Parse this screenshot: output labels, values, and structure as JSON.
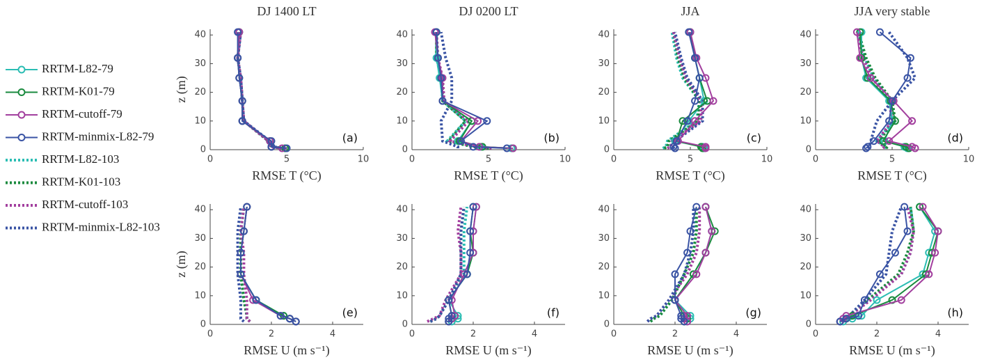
{
  "legend": [
    {
      "name": "RRTM-L82-79",
      "color": "#2bbdb3",
      "style": "solid"
    },
    {
      "name": "RRTM-K01-79",
      "color": "#1a8a3e",
      "style": "solid"
    },
    {
      "name": "RRTM-cutoff-79",
      "color": "#a23f9e",
      "style": "solid"
    },
    {
      "name": "RRTM-minmix-L82-79",
      "color": "#3953a4",
      "style": "solid"
    },
    {
      "name": "RRTM-L82-103",
      "color": "#2bbdb3",
      "style": "dotted"
    },
    {
      "name": "RRTM-K01-103",
      "color": "#1a8a3e",
      "style": "dotted"
    },
    {
      "name": "RRTM-cutoff-103",
      "color": "#a23f9e",
      "style": "dotted"
    },
    {
      "name": "RRTM-minmix-L82-103",
      "color": "#3953a4",
      "style": "dotted"
    }
  ],
  "chart_data": [
    {
      "type": "line",
      "title": "DJ 1400 LT",
      "xlabel": "RMSE T (°C)",
      "ylabel": "z (m)",
      "panel_label": "(a)",
      "y": [
        0.5,
        1,
        3,
        10,
        17,
        25,
        32,
        41
      ],
      "xlim": [
        0,
        10
      ],
      "xticks": [
        0,
        5,
        10
      ],
      "ylim": [
        0,
        42
      ],
      "yticks": [
        0,
        10,
        20,
        30,
        40
      ],
      "series": [
        {
          "values": [
            4.9,
            4.0,
            3.9,
            2.1,
            2.1,
            1.9,
            1.8,
            1.9
          ]
        },
        {
          "values": [
            4.9,
            4.0,
            3.9,
            2.1,
            2.1,
            1.9,
            1.8,
            1.9
          ]
        },
        {
          "values": [
            4.7,
            4.0,
            3.9,
            2.1,
            2.1,
            1.9,
            1.8,
            1.9
          ]
        },
        {
          "values": [
            5.0,
            4.0,
            4.0,
            2.1,
            2.1,
            1.9,
            1.8,
            1.8
          ]
        },
        {
          "values": [
            4.8,
            4.0,
            3.8,
            2.2,
            2.1,
            2.0,
            1.8,
            2.0
          ]
        },
        {
          "values": [
            4.8,
            4.0,
            3.8,
            2.2,
            2.1,
            2.0,
            1.8,
            2.0
          ]
        },
        {
          "values": [
            4.7,
            3.9,
            3.8,
            2.2,
            2.1,
            2.0,
            1.8,
            2.0
          ]
        },
        {
          "values": [
            4.9,
            4.1,
            3.9,
            2.2,
            2.1,
            2.0,
            1.8,
            2.0
          ]
        }
      ]
    },
    {
      "type": "line",
      "title": "DJ 0200 LT",
      "xlabel": "RMSE T (°C)",
      "panel_label": "(b)",
      "y": [
        0.5,
        1,
        3,
        10,
        17,
        25,
        32,
        41
      ],
      "xlim": [
        0,
        10
      ],
      "xticks": [
        0,
        5,
        10
      ],
      "ylim": [
        0,
        42
      ],
      "yticks": [
        0,
        10,
        20,
        30,
        40
      ],
      "series": [
        {
          "values": [
            6.5,
            4.5,
            3.0,
            3.9,
            2.0,
            1.8,
            1.6,
            1.6
          ]
        },
        {
          "values": [
            6.6,
            4.6,
            3.1,
            3.9,
            2.0,
            1.9,
            1.7,
            1.6
          ]
        },
        {
          "values": [
            6.6,
            4.4,
            3.2,
            4.3,
            2.0,
            2.0,
            1.7,
            1.5
          ]
        },
        {
          "values": [
            6.2,
            4.0,
            3.2,
            4.9,
            2.0,
            1.9,
            1.7,
            1.6
          ]
        },
        {
          "values": [
            5.0,
            4.0,
            2.3,
            3.5,
            2.0,
            1.9,
            1.6,
            1.6
          ]
        },
        {
          "values": [
            5.0,
            4.0,
            2.4,
            3.5,
            2.0,
            2.0,
            1.6,
            1.6
          ]
        },
        {
          "values": [
            5.2,
            4.2,
            2.5,
            3.7,
            2.1,
            2.0,
            1.7,
            1.6
          ]
        },
        {
          "values": [
            3.0,
            3.0,
            2.0,
            1.9,
            2.6,
            2.6,
            2.2,
            1.9
          ]
        }
      ]
    },
    {
      "type": "line",
      "title": "JJA",
      "xlabel": "RMSE T (°C)",
      "panel_label": "(c)",
      "y": [
        0.5,
        1,
        3,
        10,
        17,
        25,
        32,
        41
      ],
      "xlim": [
        0,
        10
      ],
      "xticks": [
        0,
        5,
        10
      ],
      "ylim": [
        0,
        42
      ],
      "yticks": [
        0,
        10,
        20,
        30,
        40
      ],
      "series": [
        {
          "values": [
            5.9,
            5.8,
            4.0,
            4.9,
            5.9,
            5.6,
            5.3,
            5.0
          ]
        },
        {
          "values": [
            5.8,
            5.7,
            4.1,
            4.5,
            6.1,
            5.6,
            5.3,
            5.0
          ]
        },
        {
          "values": [
            6.0,
            6.0,
            4.2,
            5.3,
            6.5,
            6.0,
            5.4,
            5.0
          ]
        },
        {
          "values": [
            4.0,
            3.9,
            4.1,
            4.8,
            5.3,
            5.6,
            5.3,
            4.9
          ]
        },
        {
          "values": [
            3.2,
            3.4,
            3.5,
            5.4,
            5.6,
            4.5,
            4.1,
            3.8
          ]
        },
        {
          "values": [
            3.3,
            3.5,
            3.6,
            5.5,
            5.6,
            4.6,
            4.2,
            3.9
          ]
        },
        {
          "values": [
            3.5,
            3.7,
            3.8,
            5.7,
            5.7,
            4.7,
            4.3,
            3.9
          ]
        },
        {
          "values": [
            3.8,
            4.0,
            4.0,
            5.8,
            5.8,
            4.8,
            4.4,
            4.0
          ]
        }
      ]
    },
    {
      "type": "line",
      "title": "JJA very stable",
      "xlabel": "RMSE T (°C)",
      "panel_label": "(d)",
      "y": [
        0.5,
        1,
        3,
        10,
        17,
        25,
        32,
        41
      ],
      "xlim": [
        0,
        10
      ],
      "xticks": [
        0,
        5,
        10
      ],
      "ylim": [
        0,
        42
      ],
      "yticks": [
        0,
        10,
        20,
        30,
        40
      ],
      "series": [
        {
          "values": [
            6.0,
            5.8,
            4.5,
            5.0,
            4.8,
            3.3,
            3.0,
            3.0
          ]
        },
        {
          "values": [
            6.1,
            5.9,
            4.4,
            5.2,
            4.9,
            3.4,
            3.0,
            2.9
          ]
        },
        {
          "values": [
            6.5,
            6.3,
            4.8,
            6.3,
            5.1,
            3.6,
            2.9,
            2.7
          ]
        },
        {
          "values": [
            3.3,
            3.4,
            3.8,
            4.8,
            5.0,
            6.0,
            6.2,
            4.2
          ]
        },
        {
          "values": [
            4.5,
            4.6,
            4.0,
            5.1,
            4.9,
            3.8,
            3.2,
            2.8
          ]
        },
        {
          "values": [
            4.6,
            4.7,
            4.1,
            5.2,
            5.0,
            3.9,
            3.3,
            2.8
          ]
        },
        {
          "values": [
            4.4,
            4.5,
            4.0,
            5.0,
            4.8,
            3.7,
            3.1,
            2.7
          ]
        },
        {
          "values": [
            3.4,
            3.5,
            3.6,
            4.0,
            5.0,
            6.5,
            6.0,
            4.8
          ]
        }
      ]
    },
    {
      "type": "line",
      "xlabel": "RMSE U (m s⁻¹)",
      "ylabel": "z (m)",
      "panel_label": "(e)",
      "y": [
        1,
        2,
        3,
        8.5,
        17.5,
        25,
        32.5,
        41
      ],
      "xlim": [
        0,
        5
      ],
      "xticks": [
        0,
        2,
        4
      ],
      "ylim": [
        0,
        42
      ],
      "yticks": [
        0,
        10,
        20,
        30,
        40
      ],
      "series": [
        {
          "values": [
            2.8,
            2.6,
            2.4,
            1.5,
            1.0,
            1.0,
            1.1,
            1.2
          ]
        },
        {
          "values": [
            2.8,
            2.6,
            2.4,
            1.5,
            1.0,
            1.0,
            1.1,
            1.2
          ]
        },
        {
          "values": [
            2.8,
            2.6,
            2.3,
            1.4,
            1.0,
            1.0,
            1.1,
            1.2
          ]
        },
        {
          "values": [
            2.8,
            2.6,
            2.3,
            1.5,
            1.0,
            1.0,
            1.1,
            1.2
          ]
        },
        {
          "values": [
            1.3,
            1.2,
            1.2,
            1.1,
            1.0,
            1.0,
            1.0,
            1.1
          ]
        },
        {
          "values": [
            1.3,
            1.2,
            1.2,
            1.1,
            1.0,
            1.0,
            1.0,
            1.1
          ]
        },
        {
          "values": [
            1.3,
            1.2,
            1.2,
            1.2,
            1.1,
            1.1,
            1.0,
            1.1
          ]
        },
        {
          "values": [
            1.1,
            1.0,
            1.0,
            1.0,
            0.9,
            0.9,
            0.9,
            1.0
          ]
        }
      ]
    },
    {
      "type": "line",
      "xlabel": "RMSE U (m s⁻¹)",
      "panel_label": "(f)",
      "y": [
        1,
        2,
        3,
        8.5,
        17.5,
        25,
        32.5,
        41
      ],
      "xlim": [
        0,
        5
      ],
      "xticks": [
        0,
        2,
        4
      ],
      "ylim": [
        0,
        42
      ],
      "yticks": [
        0,
        10,
        20,
        30,
        40
      ],
      "series": [
        {
          "values": [
            1.3,
            1.5,
            1.5,
            1.2,
            1.8,
            2.0,
            2.0,
            2.1
          ]
        },
        {
          "values": [
            1.2,
            1.3,
            1.3,
            1.2,
            1.8,
            2.0,
            1.9,
            2.0
          ]
        },
        {
          "values": [
            1.2,
            1.3,
            1.4,
            1.3,
            1.7,
            2.0,
            2.0,
            2.1
          ]
        },
        {
          "values": [
            1.2,
            1.2,
            1.3,
            1.2,
            1.8,
            1.9,
            1.9,
            2.0
          ]
        },
        {
          "values": [
            0.6,
            0.8,
            0.9,
            1.2,
            1.7,
            1.7,
            1.7,
            1.8
          ]
        },
        {
          "values": [
            0.6,
            0.8,
            0.9,
            1.2,
            1.6,
            1.6,
            1.6,
            1.7
          ]
        },
        {
          "values": [
            0.5,
            0.7,
            0.9,
            1.1,
            1.6,
            1.6,
            1.5,
            1.6
          ]
        },
        {
          "values": [
            0.6,
            0.8,
            0.9,
            1.2,
            1.6,
            1.6,
            1.6,
            1.7
          ]
        }
      ]
    },
    {
      "type": "line",
      "xlabel": "RMSE U (m s⁻¹)",
      "panel_label": "(g)",
      "y": [
        1,
        2,
        3,
        8.5,
        17.5,
        25,
        32.5,
        41
      ],
      "xlim": [
        0,
        5
      ],
      "xticks": [
        0,
        2,
        4
      ],
      "ylim": [
        0,
        42
      ],
      "yticks": [
        0,
        10,
        20,
        30,
        40
      ],
      "series": [
        {
          "values": [
            2.4,
            2.5,
            2.5,
            2.0,
            2.6,
            3.0,
            3.2,
            3.0
          ]
        },
        {
          "values": [
            2.3,
            2.4,
            2.3,
            2.0,
            2.6,
            3.0,
            3.3,
            3.0
          ]
        },
        {
          "values": [
            2.4,
            2.3,
            2.4,
            2.0,
            2.7,
            3.0,
            3.2,
            3.0
          ]
        },
        {
          "values": [
            2.3,
            2.2,
            2.2,
            2.0,
            2.0,
            2.4,
            2.5,
            2.7
          ]
        },
        {
          "values": [
            1.2,
            1.3,
            1.5,
            1.9,
            2.3,
            2.6,
            2.7,
            2.6
          ]
        },
        {
          "values": [
            1.2,
            1.3,
            1.5,
            1.9,
            2.3,
            2.6,
            2.7,
            2.7
          ]
        },
        {
          "values": [
            1.1,
            1.2,
            1.4,
            1.8,
            2.4,
            2.7,
            2.8,
            2.8
          ]
        },
        {
          "values": [
            1.1,
            1.2,
            1.4,
            1.8,
            2.3,
            2.5,
            2.6,
            2.6
          ]
        }
      ]
    },
    {
      "type": "line",
      "xlabel": "RMSE U (m s⁻¹)",
      "panel_label": "(h)",
      "y": [
        1,
        2,
        3,
        8.5,
        17.5,
        25,
        32.5,
        41
      ],
      "xlim": [
        0,
        5
      ],
      "xticks": [
        0,
        2,
        4
      ],
      "ylim": [
        0,
        42
      ],
      "yticks": [
        0,
        10,
        20,
        30,
        40
      ],
      "series": [
        {
          "values": [
            0.9,
            1.2,
            1.5,
            2.0,
            3.5,
            3.7,
            3.9,
            3.4
          ]
        },
        {
          "values": [
            0.8,
            1.0,
            1.2,
            2.5,
            3.6,
            3.8,
            4.0,
            3.4
          ]
        },
        {
          "values": [
            0.8,
            0.9,
            1.0,
            2.8,
            3.7,
            3.9,
            4.0,
            3.5
          ]
        },
        {
          "values": [
            0.8,
            1.0,
            1.4,
            1.6,
            2.1,
            2.6,
            3.0,
            2.9
          ]
        },
        {
          "values": [
            0.9,
            1.0,
            1.1,
            1.7,
            2.8,
            3.1,
            3.2,
            3.1
          ]
        },
        {
          "values": [
            0.9,
            1.0,
            1.1,
            1.7,
            2.7,
            3.0,
            3.2,
            3.1
          ]
        },
        {
          "values": [
            0.9,
            1.0,
            1.1,
            1.8,
            2.8,
            3.1,
            3.2,
            3.0
          ]
        },
        {
          "values": [
            0.9,
            1.0,
            1.1,
            1.6,
            2.3,
            2.4,
            2.5,
            2.8
          ]
        }
      ]
    }
  ]
}
